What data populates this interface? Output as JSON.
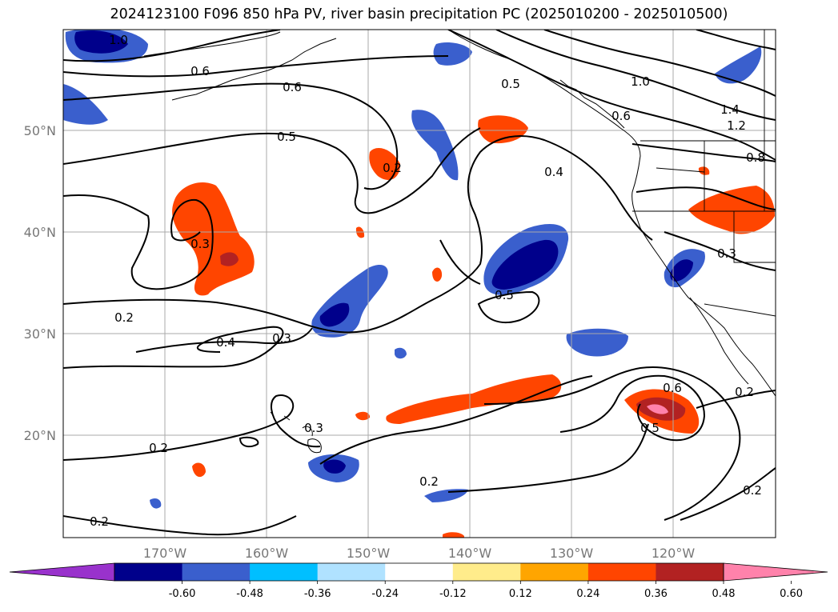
{
  "title": "2024123100 F096 850 hPa PV, river basin precipitation PC (2025010200 - 2025010500)",
  "map": {
    "lat_ticks": [
      "50°N",
      "40°N",
      "30°N",
      "20°N"
    ],
    "lon_ticks": [
      "170°W",
      "160°W",
      "150°W",
      "140°W",
      "130°W",
      "120°W"
    ],
    "contour_labels": [
      "1.0",
      "0.6",
      "0.6",
      "0.5",
      "0.5",
      "0.4",
      "0.3",
      "0.2",
      "0.4",
      "0.3",
      "0.2",
      "0.2",
      "0.3",
      "0.2",
      "0.2",
      "0.5",
      "0.6",
      "0.5",
      "0.6",
      "1.0",
      "1.4",
      "1.2",
      "0.8",
      "0.3",
      "0.2",
      "0.2"
    ]
  },
  "colorbar": {
    "levels": [
      "-0.60",
      "-0.48",
      "-0.36",
      "-0.24",
      "-0.12",
      "0.12",
      "0.24",
      "0.36",
      "0.48",
      "0.60"
    ],
    "colors": [
      "#9932cc",
      "#00008b",
      "#3a5fcd",
      "#00bfff",
      "#b0e2ff",
      "#ffffff",
      "#ffec8b",
      "#ffa500",
      "#ff4500",
      "#b22222",
      "#ff82ab"
    ]
  }
}
